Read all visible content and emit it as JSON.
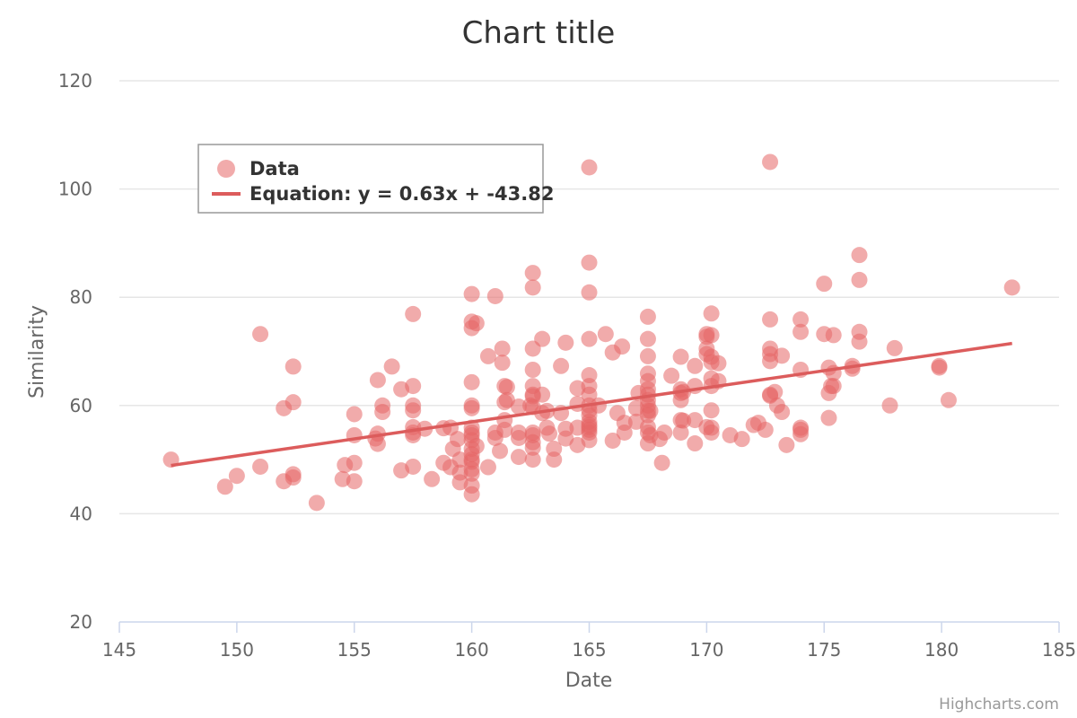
{
  "chart_data": {
    "type": "scatter",
    "title": "Chart title",
    "xlabel": "Date",
    "ylabel": "Similarity",
    "xlim": [
      145,
      185
    ],
    "ylim": [
      20,
      120
    ],
    "x_ticks": [
      145,
      150,
      155,
      160,
      165,
      170,
      175,
      180,
      185
    ],
    "y_ticks": [
      20,
      40,
      60,
      80,
      100,
      120
    ],
    "grid": "horizontal",
    "legend_position": "top-left",
    "colors": {
      "points": "#e66666",
      "trend": "#dc5c5c"
    },
    "series": [
      {
        "name": "Data",
        "type": "scatter",
        "points": [
          [
            147.2,
            50.0
          ],
          [
            149.5,
            45.0
          ],
          [
            150.0,
            47.0
          ],
          [
            151.0,
            73.2
          ],
          [
            151.0,
            48.7
          ],
          [
            152.0,
            59.5
          ],
          [
            152.0,
            46.0
          ],
          [
            152.4,
            67.2
          ],
          [
            152.4,
            60.6
          ],
          [
            152.4,
            47.3
          ],
          [
            152.4,
            46.7
          ],
          [
            153.4,
            42.0
          ],
          [
            154.5,
            46.4
          ],
          [
            154.6,
            49.0
          ],
          [
            155.0,
            58.4
          ],
          [
            155.0,
            54.5
          ],
          [
            155.0,
            49.4
          ],
          [
            155.0,
            46.0
          ],
          [
            155.9,
            53.9
          ],
          [
            156.0,
            64.7
          ],
          [
            156.0,
            54.8
          ],
          [
            156.0,
            52.9
          ],
          [
            156.2,
            60.0
          ],
          [
            156.2,
            58.8
          ],
          [
            156.6,
            67.2
          ],
          [
            157.0,
            63.0
          ],
          [
            157.0,
            48.0
          ],
          [
            157.5,
            76.9
          ],
          [
            157.5,
            63.6
          ],
          [
            157.5,
            60.0
          ],
          [
            157.5,
            59.1
          ],
          [
            157.5,
            56.0
          ],
          [
            157.5,
            55.0
          ],
          [
            157.5,
            54.5
          ],
          [
            157.5,
            48.7
          ],
          [
            158.0,
            55.7
          ],
          [
            158.3,
            46.4
          ],
          [
            158.8,
            55.8
          ],
          [
            158.8,
            49.4
          ],
          [
            159.1,
            55.9
          ],
          [
            159.1,
            48.6
          ],
          [
            159.2,
            52.0
          ],
          [
            159.4,
            53.8
          ],
          [
            159.5,
            50.0
          ],
          [
            159.5,
            47.6
          ],
          [
            159.5,
            45.8
          ],
          [
            160.0,
            80.6
          ],
          [
            160.0,
            75.5
          ],
          [
            160.0,
            74.3
          ],
          [
            160.0,
            64.3
          ],
          [
            160.0,
            60.0
          ],
          [
            160.0,
            59.5
          ],
          [
            160.0,
            55.9
          ],
          [
            160.0,
            55.0
          ],
          [
            160.0,
            54.5
          ],
          [
            160.0,
            53.6
          ],
          [
            160.0,
            52.0
          ],
          [
            160.0,
            51.0
          ],
          [
            160.0,
            50.0
          ],
          [
            160.0,
            49.6
          ],
          [
            160.0,
            48.2
          ],
          [
            160.0,
            47.4
          ],
          [
            160.0,
            45.2
          ],
          [
            160.0,
            43.6
          ],
          [
            160.2,
            75.2
          ],
          [
            160.2,
            52.5
          ],
          [
            160.7,
            69.1
          ],
          [
            160.7,
            48.6
          ],
          [
            161.0,
            80.2
          ],
          [
            161.0,
            55.0
          ],
          [
            161.0,
            54.0
          ],
          [
            161.2,
            51.6
          ],
          [
            161.3,
            70.5
          ],
          [
            161.3,
            67.9
          ],
          [
            161.4,
            63.6
          ],
          [
            161.4,
            55.5
          ],
          [
            161.4,
            60.6
          ],
          [
            161.4,
            57.3
          ],
          [
            161.5,
            63.4
          ],
          [
            161.5,
            61.0
          ],
          [
            162.0,
            59.8
          ],
          [
            162.0,
            55.0
          ],
          [
            162.0,
            54.0
          ],
          [
            162.0,
            50.5
          ],
          [
            162.5,
            60.0
          ],
          [
            162.6,
            84.5
          ],
          [
            162.6,
            81.8
          ],
          [
            162.6,
            70.5
          ],
          [
            162.6,
            66.6
          ],
          [
            162.6,
            63.6
          ],
          [
            162.6,
            62.0
          ],
          [
            162.6,
            61.7
          ],
          [
            162.6,
            59.7
          ],
          [
            162.6,
            55.0
          ],
          [
            162.6,
            54.5
          ],
          [
            162.6,
            53.2
          ],
          [
            162.6,
            50.0
          ],
          [
            162.6,
            52.2
          ],
          [
            163.0,
            72.3
          ],
          [
            163.0,
            62.0
          ],
          [
            163.0,
            58.6
          ],
          [
            163.2,
            59.0
          ],
          [
            163.2,
            55.9
          ],
          [
            163.3,
            54.8
          ],
          [
            163.5,
            50.0
          ],
          [
            163.5,
            52.0
          ],
          [
            163.8,
            67.3
          ],
          [
            163.8,
            58.6
          ],
          [
            164.0,
            71.6
          ],
          [
            164.0,
            55.7
          ],
          [
            164.0,
            53.9
          ],
          [
            164.5,
            63.2
          ],
          [
            164.5,
            60.3
          ],
          [
            164.5,
            55.9
          ],
          [
            164.5,
            52.7
          ],
          [
            165.0,
            104.0
          ],
          [
            165.0,
            86.4
          ],
          [
            165.0,
            80.9
          ],
          [
            165.0,
            72.3
          ],
          [
            165.0,
            65.6
          ],
          [
            165.0,
            63.6
          ],
          [
            165.0,
            62.0
          ],
          [
            165.0,
            60.0
          ],
          [
            165.0,
            59.1
          ],
          [
            165.0,
            58.2
          ],
          [
            165.0,
            57.0
          ],
          [
            165.0,
            56.4
          ],
          [
            165.0,
            56.0
          ],
          [
            165.0,
            55.5
          ],
          [
            165.0,
            55.0
          ],
          [
            165.0,
            53.6
          ],
          [
            165.4,
            60.0
          ],
          [
            165.7,
            73.2
          ],
          [
            166.0,
            69.8
          ],
          [
            166.0,
            53.5
          ],
          [
            166.2,
            58.6
          ],
          [
            166.4,
            70.9
          ],
          [
            166.5,
            55.0
          ],
          [
            166.5,
            56.8
          ],
          [
            167.0,
            59.5
          ],
          [
            167.0,
            57.0
          ],
          [
            167.1,
            62.3
          ],
          [
            167.5,
            76.4
          ],
          [
            167.5,
            72.3
          ],
          [
            167.5,
            69.1
          ],
          [
            167.5,
            65.9
          ],
          [
            167.5,
            64.5
          ],
          [
            167.5,
            63.0
          ],
          [
            167.5,
            62.0
          ],
          [
            167.5,
            61.0
          ],
          [
            167.5,
            60.0
          ],
          [
            167.5,
            59.0
          ],
          [
            167.5,
            58.2
          ],
          [
            167.5,
            56.0
          ],
          [
            167.5,
            55.0
          ],
          [
            167.5,
            53.0
          ],
          [
            167.6,
            59.0
          ],
          [
            167.6,
            54.5
          ],
          [
            168.0,
            53.8
          ],
          [
            168.1,
            49.4
          ],
          [
            168.2,
            55.0
          ],
          [
            168.5,
            65.5
          ],
          [
            168.9,
            69.0
          ],
          [
            168.9,
            63.0
          ],
          [
            168.9,
            62.3
          ],
          [
            168.9,
            61.0
          ],
          [
            168.9,
            57.3
          ],
          [
            168.9,
            55.0
          ],
          [
            169.0,
            62.5
          ],
          [
            169.0,
            57.2
          ],
          [
            169.5,
            63.6
          ],
          [
            169.5,
            67.3
          ],
          [
            169.5,
            57.3
          ],
          [
            169.5,
            53.0
          ],
          [
            170.0,
            73.2
          ],
          [
            170.0,
            72.7
          ],
          [
            170.0,
            70.5
          ],
          [
            170.0,
            69.5
          ],
          [
            170.0,
            56.0
          ],
          [
            170.2,
            77.0
          ],
          [
            170.2,
            73.0
          ],
          [
            170.2,
            69.0
          ],
          [
            170.2,
            68.0
          ],
          [
            170.2,
            65.0
          ],
          [
            170.2,
            63.6
          ],
          [
            170.2,
            59.1
          ],
          [
            170.2,
            55.9
          ],
          [
            170.2,
            55.0
          ],
          [
            170.5,
            67.8
          ],
          [
            170.5,
            64.5
          ],
          [
            171.0,
            54.5
          ],
          [
            171.5,
            53.8
          ],
          [
            172.0,
            56.4
          ],
          [
            172.2,
            56.8
          ],
          [
            172.5,
            55.5
          ],
          [
            172.7,
            105.0
          ],
          [
            172.7,
            75.9
          ],
          [
            172.7,
            70.5
          ],
          [
            172.7,
            69.5
          ],
          [
            172.7,
            68.2
          ],
          [
            172.7,
            62.0
          ],
          [
            172.7,
            61.8
          ],
          [
            172.9,
            62.5
          ],
          [
            173.0,
            60.0
          ],
          [
            173.2,
            69.2
          ],
          [
            173.2,
            58.8
          ],
          [
            173.4,
            52.7
          ],
          [
            174.0,
            75.9
          ],
          [
            174.0,
            73.6
          ],
          [
            174.0,
            66.6
          ],
          [
            174.0,
            55.9
          ],
          [
            174.0,
            55.5
          ],
          [
            174.0,
            54.7
          ],
          [
            175.0,
            82.5
          ],
          [
            175.0,
            73.2
          ],
          [
            175.2,
            62.3
          ],
          [
            175.2,
            57.7
          ],
          [
            175.2,
            67.0
          ],
          [
            175.3,
            63.6
          ],
          [
            175.4,
            73.0
          ],
          [
            175.4,
            63.6
          ],
          [
            175.4,
            66.0
          ],
          [
            176.2,
            67.3
          ],
          [
            176.2,
            66.8
          ],
          [
            176.5,
            87.8
          ],
          [
            176.5,
            83.2
          ],
          [
            176.5,
            73.6
          ],
          [
            176.5,
            71.8
          ],
          [
            177.8,
            60.0
          ],
          [
            178.0,
            70.6
          ],
          [
            179.9,
            67.3
          ],
          [
            179.9,
            67.0
          ],
          [
            180.3,
            61.0
          ],
          [
            183.0,
            81.8
          ]
        ]
      },
      {
        "name": "Equation: y = 0.63x + -43.82",
        "type": "line",
        "slope": 0.63,
        "intercept": -43.82,
        "x_range": [
          147.2,
          183.0
        ]
      }
    ]
  },
  "credit": "Highcharts.com"
}
